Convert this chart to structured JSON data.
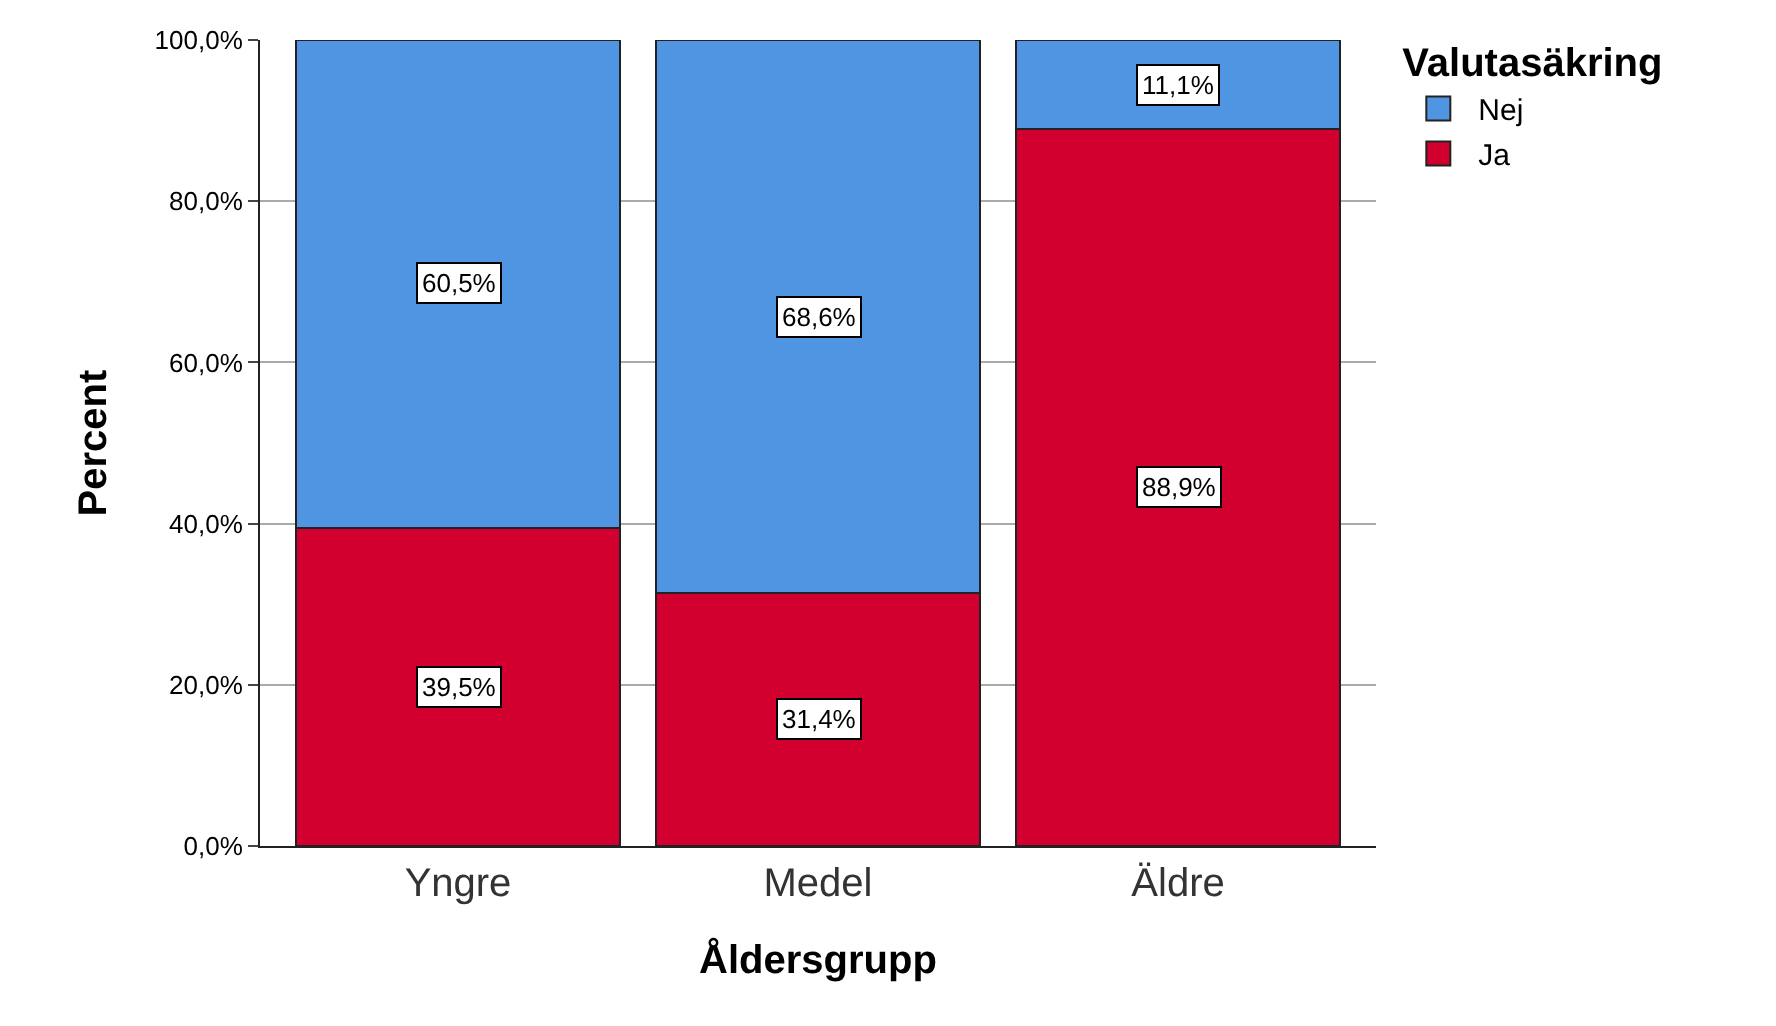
{
  "chart_data": {
    "type": "bar",
    "stacked": true,
    "xlabel": "Åldersgrupp",
    "ylabel": "Percent",
    "legend_title": "Valutasäkring",
    "categories": [
      "Yngre",
      "Medel",
      "Äldre"
    ],
    "series": [
      {
        "name": "Ja",
        "color": "#d1002f",
        "values": [
          39.5,
          31.4,
          88.9
        ],
        "value_labels": [
          "39,5%",
          "31,4%",
          "88,9%"
        ]
      },
      {
        "name": "Nej",
        "color": "#5095e2",
        "values": [
          60.5,
          68.6,
          11.1
        ],
        "value_labels": [
          "60,5%",
          "68,6%",
          "11,1%"
        ]
      }
    ],
    "ylim": [
      0,
      100
    ],
    "yticks": [
      {
        "value": 0,
        "label": "0,0%"
      },
      {
        "value": 20,
        "label": "20,0%"
      },
      {
        "value": 40,
        "label": "40,0%"
      },
      {
        "value": 60,
        "label": "60,0%"
      },
      {
        "value": 80,
        "label": "80,0%"
      },
      {
        "value": 100,
        "label": "100,0%"
      }
    ],
    "grid": "y",
    "legend": "top right"
  }
}
